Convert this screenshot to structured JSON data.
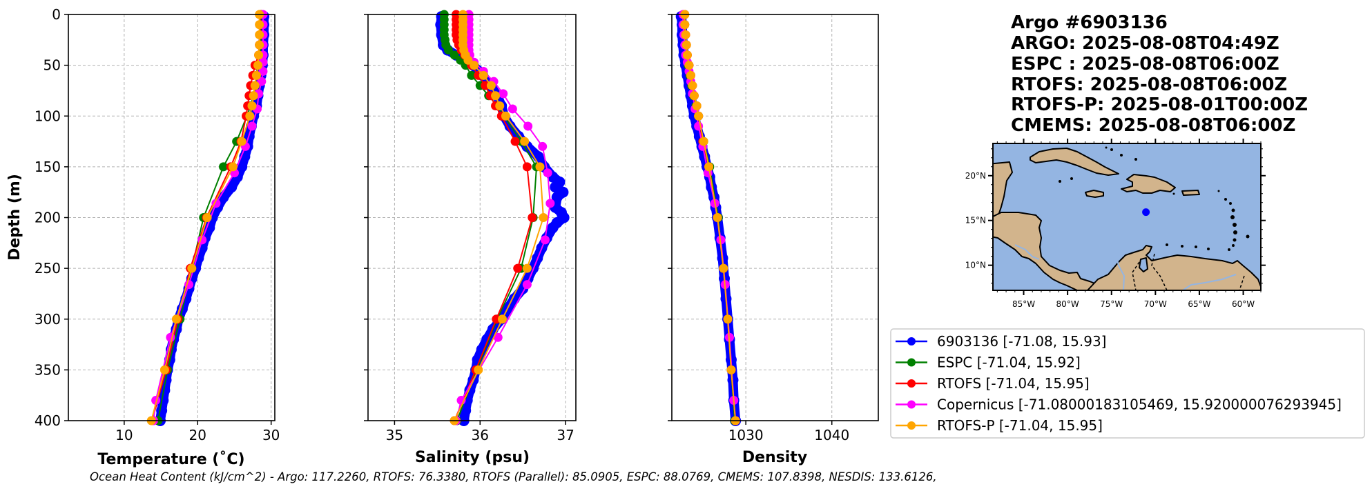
{
  "info": {
    "lines": [
      "Argo #6903136",
      "ARGO: 2025-08-08T04:49Z",
      "ESPC : 2025-08-08T06:00Z",
      "RTOFS: 2025-08-08T06:00Z",
      "RTOFS-P: 2025-08-01T00:00Z",
      "CMEMS: 2025-08-08T06:00Z"
    ]
  },
  "footer": "Ocean Heat Content (kJ/cm^2) - Argo: 117.2260,  RTOFS: 76.3380,  RTOFS (Parallel): 85.0905,  ESPC: 88.0769,  CMEMS: 107.8398,  NESDIS: 133.6126,",
  "legend": [
    {
      "label": "6903136 [-71.08, 15.93]",
      "color": "#0000ff"
    },
    {
      "label": "ESPC [-71.04, 15.92]",
      "color": "#008000"
    },
    {
      "label": "RTOFS [-71.04, 15.95]",
      "color": "#ff0000"
    },
    {
      "label": "Copernicus [-71.08000183105469, 15.920000076293945]",
      "color": "#ff00ff"
    },
    {
      "label": "RTOFS-P [-71.04, 15.95]",
      "color": "#ffa500"
    }
  ],
  "map": {
    "float_position": {
      "lon": -71.08,
      "lat": 15.93
    },
    "lon_range": [
      -88.5,
      -58
    ],
    "lat_range": [
      7.2,
      23.6
    ],
    "lon_ticks": [
      {
        "v": -85,
        "label": "85°W"
      },
      {
        "v": -80,
        "label": "80°W"
      },
      {
        "v": -75,
        "label": "75°W"
      },
      {
        "v": -70,
        "label": "70°W"
      },
      {
        "v": -65,
        "label": "65°W"
      },
      {
        "v": -60,
        "label": "60°W"
      }
    ],
    "lat_ticks": [
      {
        "v": 20,
        "label": "20°N"
      },
      {
        "v": 15,
        "label": "15°N"
      },
      {
        "v": 10,
        "label": "10°N"
      }
    ],
    "ocean_color": "#94b5e2",
    "land_color": "#d2b48c",
    "marker_color": "#0000ff"
  },
  "chart_data": [
    {
      "type": "line",
      "title": "",
      "xlabel": "Temperature (˚C)",
      "ylabel": "Depth (m)",
      "xlim": [
        2.4,
        30.5
      ],
      "ylim": [
        400,
        0
      ],
      "xticks": [
        10,
        20,
        30
      ],
      "yticks": [
        0,
        50,
        100,
        150,
        200,
        250,
        300,
        350,
        400
      ],
      "grid": true,
      "series": [
        {
          "name": "6903136",
          "color": "#0000ff",
          "dense": true,
          "depth": [
            2,
            10,
            20,
            30,
            40,
            50,
            55,
            60,
            70,
            80,
            90,
            100,
            110,
            120,
            130,
            140,
            150,
            160,
            170,
            180,
            190,
            200,
            210,
            220,
            230,
            240,
            250,
            260,
            270,
            280,
            290,
            300,
            310,
            320,
            330,
            340,
            350,
            360,
            370,
            380,
            390,
            400
          ],
          "values": [
            29.0,
            29.0,
            29.0,
            28.9,
            28.9,
            28.8,
            28.7,
            28.6,
            28.4,
            28.2,
            28.0,
            27.6,
            27.3,
            27.0,
            26.8,
            26.4,
            26.0,
            25.4,
            24.6,
            23.5,
            22.7,
            22.0,
            21.6,
            21.0,
            20.6,
            20.1,
            19.7,
            19.2,
            18.8,
            18.4,
            17.9,
            17.4,
            17.1,
            16.7,
            16.4,
            16.2,
            15.9,
            15.7,
            15.5,
            15.3,
            15.1,
            14.9
          ]
        },
        {
          "name": "ESPC",
          "color": "#008000",
          "depth": [
            0,
            10,
            20,
            30,
            40,
            50,
            60,
            70,
            80,
            90,
            100,
            125,
            150,
            200,
            250,
            300,
            350,
            400
          ],
          "values": [
            28.6,
            28.6,
            28.6,
            28.6,
            28.5,
            28.3,
            28.0,
            27.8,
            27.6,
            27.2,
            26.7,
            25.3,
            23.5,
            20.8,
            19.2,
            17.6,
            15.9,
            14.6
          ]
        },
        {
          "name": "RTOFS",
          "color": "#ff0000",
          "depth": [
            0,
            10,
            20,
            30,
            40,
            50,
            60,
            70,
            80,
            90,
            100,
            125,
            150,
            200,
            250,
            300,
            350,
            400
          ],
          "values": [
            28.5,
            28.5,
            28.5,
            28.4,
            28.3,
            27.8,
            27.5,
            27.2,
            27.0,
            26.8,
            26.6,
            25.9,
            24.5,
            21.2,
            19.0,
            17.3,
            15.7,
            13.8
          ]
        },
        {
          "name": "Copernicus",
          "color": "#ff00ff",
          "depth": [
            0,
            10,
            20,
            30,
            40,
            47,
            56,
            66,
            78,
            93,
            110,
            130,
            156,
            186,
            222,
            266,
            318,
            380,
            400
          ],
          "values": [
            28.9,
            28.9,
            28.9,
            28.9,
            28.9,
            28.9,
            28.9,
            28.7,
            28.3,
            28.1,
            27.4,
            26.5,
            25.0,
            22.5,
            20.6,
            18.8,
            16.3,
            14.3,
            14.0
          ]
        },
        {
          "name": "RTOFS-P",
          "color": "#ffa500",
          "depth": [
            0,
            10,
            20,
            30,
            40,
            50,
            60,
            70,
            80,
            90,
            100,
            125,
            150,
            200,
            250,
            300,
            350,
            400
          ],
          "values": [
            28.4,
            28.4,
            28.4,
            28.4,
            28.3,
            28.2,
            28.0,
            27.8,
            27.6,
            27.4,
            27.1,
            26.0,
            24.8,
            21.3,
            19.2,
            17.1,
            15.5,
            13.7
          ]
        }
      ]
    },
    {
      "type": "line",
      "title": "",
      "xlabel": "Salinity (psu)",
      "ylabel": "",
      "xlim": [
        34.69,
        37.12
      ],
      "ylim": [
        400,
        0
      ],
      "xticks": [
        35,
        36,
        37
      ],
      "yticks": [
        0,
        50,
        100,
        150,
        200,
        250,
        300,
        350,
        400
      ],
      "grid": true,
      "series": [
        {
          "name": "6903136",
          "color": "#0000ff",
          "dense": true,
          "depth": [
            2,
            10,
            20,
            30,
            35,
            40,
            45,
            50,
            55,
            60,
            70,
            80,
            90,
            100,
            110,
            120,
            130,
            140,
            150,
            160,
            165,
            170,
            175,
            180,
            190,
            195,
            200,
            205,
            210,
            220,
            230,
            240,
            250,
            260,
            270,
            280,
            290,
            300,
            310,
            320,
            330,
            340,
            350,
            360,
            370,
            380,
            390,
            400
          ],
          "values": [
            35.55,
            35.54,
            35.55,
            35.57,
            35.62,
            35.72,
            35.82,
            35.92,
            35.97,
            36.03,
            36.12,
            36.2,
            36.25,
            36.28,
            36.35,
            36.45,
            36.55,
            36.68,
            36.75,
            36.85,
            36.93,
            36.88,
            36.97,
            36.9,
            36.88,
            36.95,
            36.98,
            36.9,
            36.85,
            36.78,
            36.72,
            36.67,
            36.62,
            36.56,
            36.5,
            36.4,
            36.32,
            36.25,
            36.15,
            36.08,
            36.02,
            35.97,
            35.95,
            35.92,
            35.88,
            35.85,
            35.83,
            35.81
          ]
        },
        {
          "name": "ESPC",
          "color": "#008000",
          "depth": [
            0,
            5,
            10,
            15,
            20,
            25,
            30,
            35,
            40,
            45,
            50,
            60,
            70,
            80,
            90,
            100,
            125,
            150,
            200,
            250,
            300,
            350,
            400
          ],
          "values": [
            35.58,
            35.58,
            35.58,
            35.58,
            35.58,
            35.59,
            35.6,
            35.63,
            35.7,
            35.77,
            35.83,
            35.9,
            36.0,
            36.1,
            36.2,
            36.28,
            36.48,
            36.66,
            36.62,
            36.48,
            36.2,
            35.96,
            35.73
          ]
        },
        {
          "name": "RTOFS",
          "color": "#ff0000",
          "depth": [
            0,
            5,
            10,
            15,
            20,
            25,
            30,
            35,
            40,
            45,
            50,
            60,
            70,
            80,
            90,
            100,
            125,
            150,
            200,
            250,
            300,
            350,
            400
          ],
          "values": [
            35.72,
            35.72,
            35.72,
            35.72,
            35.72,
            35.73,
            35.75,
            35.78,
            35.82,
            35.86,
            35.9,
            35.98,
            36.06,
            36.12,
            36.18,
            36.25,
            36.41,
            36.55,
            36.61,
            36.44,
            36.19,
            35.95,
            35.7
          ]
        },
        {
          "name": "Copernicus",
          "color": "#ff00ff",
          "depth": [
            0,
            5,
            10,
            15,
            20,
            25,
            30,
            35,
            40,
            47,
            56,
            66,
            78,
            93,
            110,
            130,
            156,
            186,
            222,
            266,
            318,
            380,
            400
          ],
          "values": [
            35.87,
            35.87,
            35.87,
            35.87,
            35.87,
            35.87,
            35.87,
            35.87,
            35.88,
            35.93,
            36.04,
            36.16,
            36.27,
            36.38,
            36.56,
            36.73,
            36.79,
            36.82,
            36.76,
            36.55,
            36.21,
            35.78,
            35.72
          ]
        },
        {
          "name": "RTOFS-P",
          "color": "#ffa500",
          "depth": [
            0,
            5,
            10,
            15,
            20,
            25,
            30,
            35,
            40,
            45,
            50,
            60,
            70,
            80,
            90,
            100,
            125,
            150,
            200,
            250,
            300,
            350,
            400
          ],
          "values": [
            35.8,
            35.8,
            35.8,
            35.8,
            35.8,
            35.8,
            35.8,
            35.81,
            35.83,
            35.86,
            35.93,
            36.04,
            36.13,
            36.18,
            36.23,
            36.3,
            36.52,
            36.7,
            36.74,
            36.55,
            36.26,
            35.98,
            35.7
          ]
        }
      ]
    },
    {
      "type": "line",
      "title": "",
      "xlabel": "Density",
      "ylabel": "",
      "xlim": [
        1021.4,
        1045.4
      ],
      "ylim": [
        400,
        0
      ],
      "xticks": [
        1030,
        1040
      ],
      "yticks": [
        0,
        50,
        100,
        150,
        200,
        250,
        300,
        350,
        400
      ],
      "grid": true,
      "series": [
        {
          "name": "6903136",
          "color": "#0000ff",
          "dense": true,
          "depth": [
            2,
            10,
            20,
            30,
            40,
            50,
            60,
            70,
            80,
            90,
            100,
            110,
            120,
            130,
            140,
            150,
            160,
            170,
            180,
            190,
            200,
            220,
            240,
            260,
            280,
            300,
            320,
            340,
            360,
            380,
            400
          ],
          "values": [
            1022.5,
            1022.6,
            1022.6,
            1022.7,
            1022.8,
            1023.0,
            1023.2,
            1023.4,
            1023.6,
            1023.8,
            1024.0,
            1024.3,
            1024.6,
            1024.9,
            1025.2,
            1025.5,
            1025.8,
            1026.0,
            1026.3,
            1026.5,
            1026.7,
            1027.0,
            1027.3,
            1027.5,
            1027.7,
            1027.9,
            1028.1,
            1028.3,
            1028.5,
            1028.6,
            1028.8
          ]
        },
        {
          "name": "ESPC",
          "color": "#008000",
          "depth": [
            0,
            10,
            20,
            30,
            40,
            50,
            60,
            70,
            80,
            90,
            100,
            125,
            150,
            200,
            250,
            300,
            350,
            400
          ],
          "values": [
            1022.9,
            1022.9,
            1022.9,
            1023.0,
            1023.1,
            1023.3,
            1023.5,
            1023.7,
            1023.9,
            1024.2,
            1024.5,
            1025.1,
            1025.8,
            1026.8,
            1027.4,
            1027.9,
            1028.3,
            1028.7
          ]
        },
        {
          "name": "RTOFS",
          "color": "#ff0000",
          "depth": [
            0,
            10,
            20,
            30,
            40,
            50,
            60,
            70,
            80,
            90,
            100,
            125,
            150,
            200,
            250,
            300,
            350,
            400
          ],
          "values": [
            1022.9,
            1022.9,
            1023.0,
            1023.1,
            1023.2,
            1023.4,
            1023.6,
            1023.8,
            1024.0,
            1024.3,
            1024.5,
            1025.0,
            1025.7,
            1026.7,
            1027.4,
            1027.9,
            1028.3,
            1028.8
          ]
        },
        {
          "name": "Copernicus",
          "color": "#ff00ff",
          "depth": [
            0,
            10,
            20,
            30,
            40,
            47,
            56,
            66,
            78,
            93,
            110,
            130,
            156,
            186,
            222,
            266,
            318,
            380,
            400
          ],
          "values": [
            1022.7,
            1022.7,
            1022.8,
            1022.9,
            1023.0,
            1023.2,
            1023.4,
            1023.6,
            1023.8,
            1024.1,
            1024.5,
            1025.0,
            1025.6,
            1026.4,
            1027.1,
            1027.6,
            1028.1,
            1028.6,
            1028.8
          ]
        },
        {
          "name": "RTOFS-P",
          "color": "#ffa500",
          "depth": [
            0,
            10,
            20,
            30,
            40,
            50,
            60,
            70,
            80,
            90,
            100,
            125,
            150,
            200,
            250,
            300,
            350,
            400
          ],
          "values": [
            1022.9,
            1022.9,
            1023.0,
            1023.1,
            1023.2,
            1023.4,
            1023.6,
            1023.8,
            1024.0,
            1024.3,
            1024.5,
            1025.1,
            1025.7,
            1026.7,
            1027.4,
            1027.9,
            1028.3,
            1028.8
          ]
        }
      ]
    }
  ]
}
